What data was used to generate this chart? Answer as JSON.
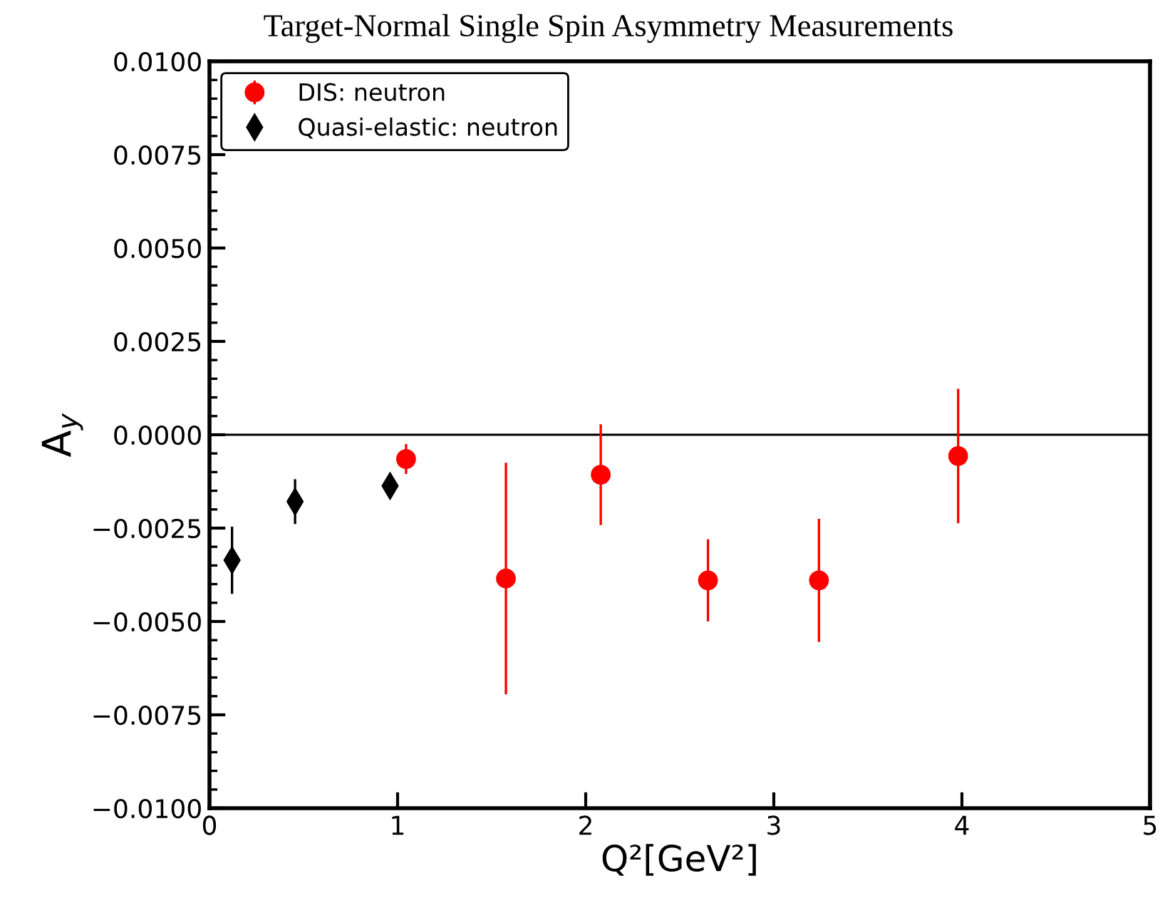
{
  "chart_data": {
    "type": "scatter",
    "title": "Target-Normal Single Spin Asymmetry Measurements",
    "xlabel": "Q²[GeV²]",
    "ylabel": "A$_{y}$",
    "series": [
      {
        "name": "DIS: neutron",
        "color": "#ff0000",
        "marker": "circle",
        "x": [
          1.045,
          1.576,
          2.08,
          2.65,
          3.24,
          3.98
        ],
        "values": [
          -0.00065,
          -0.00385,
          -0.00107,
          -0.0039,
          -0.0039,
          -0.00057
        ],
        "errors": [
          0.0004,
          0.0031,
          0.00135,
          0.0011,
          0.00165,
          0.0018
        ]
      },
      {
        "name": "Quasi-elastic: neutron",
        "color": "#000000",
        "marker": "diamond",
        "x": [
          0.12,
          0.455,
          0.96
        ],
        "values": [
          -0.00336,
          -0.00179,
          -0.00137
        ],
        "errors": [
          0.0009,
          0.0006,
          0.0002
        ]
      }
    ],
    "xlim": [
      0,
      5
    ],
    "xticks": [
      0,
      1,
      2,
      3,
      4,
      5
    ],
    "ylim": [
      -0.01,
      0.01
    ],
    "yticks": [
      {
        "value": -0.01,
        "label": "−0.0100"
      },
      {
        "value": -0.0075,
        "label": "−0.0075"
      },
      {
        "value": -0.005,
        "label": "−0.0050"
      },
      {
        "value": -0.0025,
        "label": "−0.0025"
      },
      {
        "value": 0,
        "label": "0.0000"
      },
      {
        "value": 0.0025,
        "label": "0.0025"
      },
      {
        "value": 0.005,
        "label": "0.0050"
      },
      {
        "value": 0.0075,
        "label": "0.0075"
      },
      {
        "value": 0.01,
        "label": "0.0100"
      }
    ],
    "ref_lines": [
      {
        "axis": "y",
        "value": 0,
        "color": "#000000"
      }
    ],
    "grid": false,
    "legend": "top left"
  }
}
